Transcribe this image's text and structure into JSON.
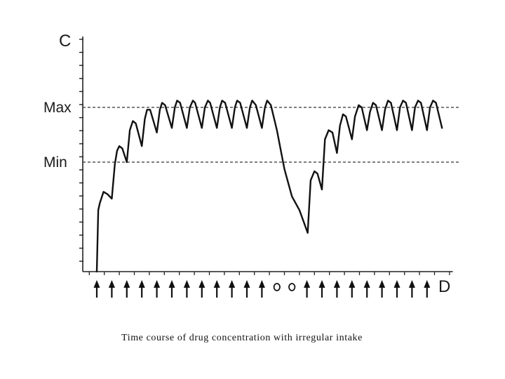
{
  "caption": "Time course of drug concentration with irregular intake",
  "chart_data": {
    "type": "line",
    "title": "",
    "xlabel": "D",
    "ylabel": "C",
    "reference_lines": [
      {
        "label": "Max",
        "value": 72
      },
      {
        "label": "Min",
        "value": 48
      }
    ],
    "ylim": [
      0,
      100
    ],
    "xlim": [
      0,
      24
    ],
    "grid": false,
    "dose_markers": [
      "dose",
      "dose",
      "dose",
      "dose",
      "dose",
      "dose",
      "dose",
      "dose",
      "dose",
      "dose",
      "dose",
      "dose",
      "missed",
      "missed",
      "dose",
      "dose",
      "dose",
      "dose",
      "dose",
      "dose",
      "dose",
      "dose",
      "dose"
    ],
    "dose_times": [
      0,
      1,
      2,
      3,
      4,
      5,
      6,
      7,
      8,
      9,
      10,
      11,
      12,
      13,
      14,
      15,
      16,
      17,
      18,
      19,
      20,
      21,
      22
    ],
    "series": [
      {
        "name": "",
        "points": [
          [
            0,
            0
          ],
          [
            0.1,
            27
          ],
          [
            0.2,
            30
          ],
          [
            0.45,
            35
          ],
          [
            0.7,
            34
          ],
          [
            1,
            32
          ],
          [
            1.2,
            47
          ],
          [
            1.35,
            53
          ],
          [
            1.5,
            55
          ],
          [
            1.7,
            54
          ],
          [
            2,
            48
          ],
          [
            2.2,
            62
          ],
          [
            2.4,
            66
          ],
          [
            2.6,
            65
          ],
          [
            3,
            55
          ],
          [
            3.2,
            67
          ],
          [
            3.35,
            71
          ],
          [
            3.55,
            71
          ],
          [
            4,
            61
          ],
          [
            4.2,
            71
          ],
          [
            4.35,
            74
          ],
          [
            4.55,
            73
          ],
          [
            5,
            63
          ],
          [
            5.2,
            72
          ],
          [
            5.35,
            75
          ],
          [
            5.55,
            74
          ],
          [
            6,
            63
          ],
          [
            6.2,
            72
          ],
          [
            6.4,
            75
          ],
          [
            6.55,
            74
          ],
          [
            7,
            63
          ],
          [
            7.2,
            72
          ],
          [
            7.4,
            75
          ],
          [
            7.55,
            74
          ],
          [
            8,
            63
          ],
          [
            8.2,
            72
          ],
          [
            8.35,
            75
          ],
          [
            8.55,
            74
          ],
          [
            9,
            63
          ],
          [
            9.2,
            72
          ],
          [
            9.35,
            75
          ],
          [
            9.55,
            74
          ],
          [
            10,
            63
          ],
          [
            10.2,
            72
          ],
          [
            10.35,
            75
          ],
          [
            10.6,
            73
          ],
          [
            11,
            63
          ],
          [
            11.2,
            72
          ],
          [
            11.35,
            75
          ],
          [
            11.6,
            73
          ],
          [
            12,
            62
          ],
          [
            12.5,
            45
          ],
          [
            13,
            33
          ],
          [
            13.5,
            27
          ],
          [
            14.05,
            17
          ],
          [
            14.25,
            40
          ],
          [
            14.5,
            44
          ],
          [
            14.7,
            43
          ],
          [
            15,
            36
          ],
          [
            15.2,
            58
          ],
          [
            15.45,
            62
          ],
          [
            15.7,
            61
          ],
          [
            16,
            52
          ],
          [
            16.2,
            64
          ],
          [
            16.4,
            69
          ],
          [
            16.6,
            68
          ],
          [
            17,
            58
          ],
          [
            17.2,
            68
          ],
          [
            17.45,
            73
          ],
          [
            17.65,
            72
          ],
          [
            18,
            62
          ],
          [
            18.2,
            70
          ],
          [
            18.4,
            74
          ],
          [
            18.6,
            73
          ],
          [
            19,
            62
          ],
          [
            19.2,
            71
          ],
          [
            19.4,
            75
          ],
          [
            19.6,
            74
          ],
          [
            20,
            62
          ],
          [
            20.2,
            72
          ],
          [
            20.4,
            75
          ],
          [
            20.6,
            74
          ],
          [
            21,
            62
          ],
          [
            21.2,
            72
          ],
          [
            21.4,
            75
          ],
          [
            21.6,
            74
          ],
          [
            22,
            62
          ],
          [
            22.2,
            72
          ],
          [
            22.4,
            75
          ],
          [
            22.6,
            74
          ],
          [
            23,
            63
          ]
        ]
      }
    ]
  }
}
